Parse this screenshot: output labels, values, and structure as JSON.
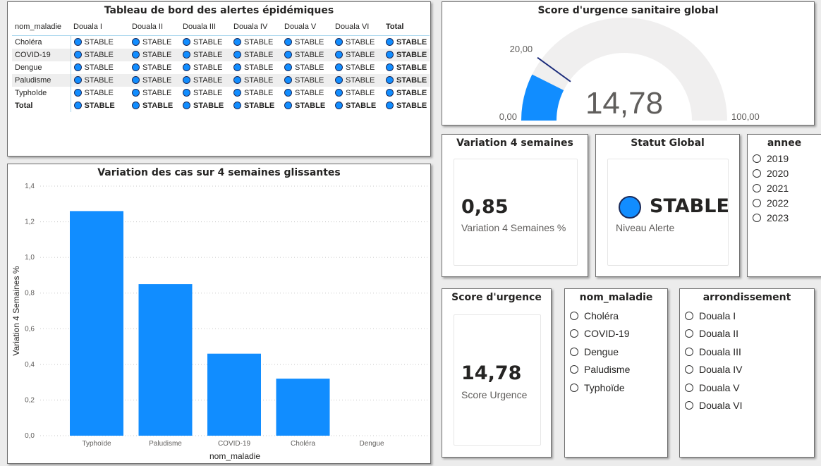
{
  "matrix": {
    "title": "Tableau de bord des alertes épidémiques",
    "row_header": "nom_maladie",
    "columns": [
      "Douala I",
      "Douala II",
      "Douala III",
      "Douala IV",
      "Douala V",
      "Douala VI",
      "Total"
    ],
    "rows": [
      {
        "label": "Choléra",
        "values": [
          "STABLE",
          "STABLE",
          "STABLE",
          "STABLE",
          "STABLE",
          "STABLE",
          "STABLE"
        ]
      },
      {
        "label": "COVID-19",
        "values": [
          "STABLE",
          "STABLE",
          "STABLE",
          "STABLE",
          "STABLE",
          "STABLE",
          "STABLE"
        ]
      },
      {
        "label": "Dengue",
        "values": [
          "STABLE",
          "STABLE",
          "STABLE",
          "STABLE",
          "STABLE",
          "STABLE",
          "STABLE"
        ]
      },
      {
        "label": "Paludisme",
        "values": [
          "STABLE",
          "STABLE",
          "STABLE",
          "STABLE",
          "STABLE",
          "STABLE",
          "STABLE"
        ]
      },
      {
        "label": "Typhoïde",
        "values": [
          "STABLE",
          "STABLE",
          "STABLE",
          "STABLE",
          "STABLE",
          "STABLE",
          "STABLE"
        ]
      },
      {
        "label": "Total",
        "values": [
          "STABLE",
          "STABLE",
          "STABLE",
          "STABLE",
          "STABLE",
          "STABLE",
          "STABLE"
        ]
      }
    ],
    "status_color": "#118dff"
  },
  "gauge": {
    "title": "Score d'urgence sanitaire global",
    "value": 14.78,
    "value_label": "14,78",
    "min": 0,
    "max": 100,
    "min_label": "0,00",
    "max_label": "100,00",
    "target": 20,
    "target_label": "20,00",
    "fill_color": "#118dff",
    "track_color": "#f0efef",
    "target_color": "#1a2a7a"
  },
  "chart_data": {
    "type": "bar",
    "title": "Variation des cas sur 4 semaines glissantes",
    "xlabel": "nom_maladie",
    "ylabel": "Variation 4 Semaines %",
    "categories": [
      "Typhoïde",
      "Paludisme",
      "COVID-19",
      "Choléra",
      "Dengue"
    ],
    "values": [
      1.26,
      0.85,
      0.46,
      0.32,
      0
    ],
    "ylim": [
      0,
      1.4
    ],
    "yticks": [
      0,
      0.2,
      0.4,
      0.6,
      0.8,
      1.0,
      1.2,
      1.4
    ],
    "ytick_labels": [
      "0,0",
      "0,2",
      "0,4",
      "0,6",
      "0,8",
      "1,0",
      "1,2",
      "1,4"
    ],
    "grid": true,
    "color": "#118dff"
  },
  "card_variation": {
    "title": "Variation 4 semaines",
    "value": "0,85",
    "label": "Variation 4 Semaines %"
  },
  "card_statut": {
    "title": "Statut Global",
    "value": "STABLE",
    "label": "Niveau Alerte"
  },
  "card_score": {
    "title": "Score d'urgence",
    "value": "14,78",
    "label": "Score Urgence"
  },
  "slicer_annee": {
    "title": "annee",
    "items": [
      "2019",
      "2020",
      "2021",
      "2022",
      "2023"
    ]
  },
  "slicer_maladie": {
    "title": "nom_maladie",
    "items": [
      "Choléra",
      "COVID-19",
      "Dengue",
      "Paludisme",
      "Typhoïde"
    ]
  },
  "slicer_arrondissement": {
    "title": "arrondissement",
    "items": [
      "Douala I",
      "Douala II",
      "Douala III",
      "Douala IV",
      "Douala V",
      "Douala VI"
    ]
  }
}
